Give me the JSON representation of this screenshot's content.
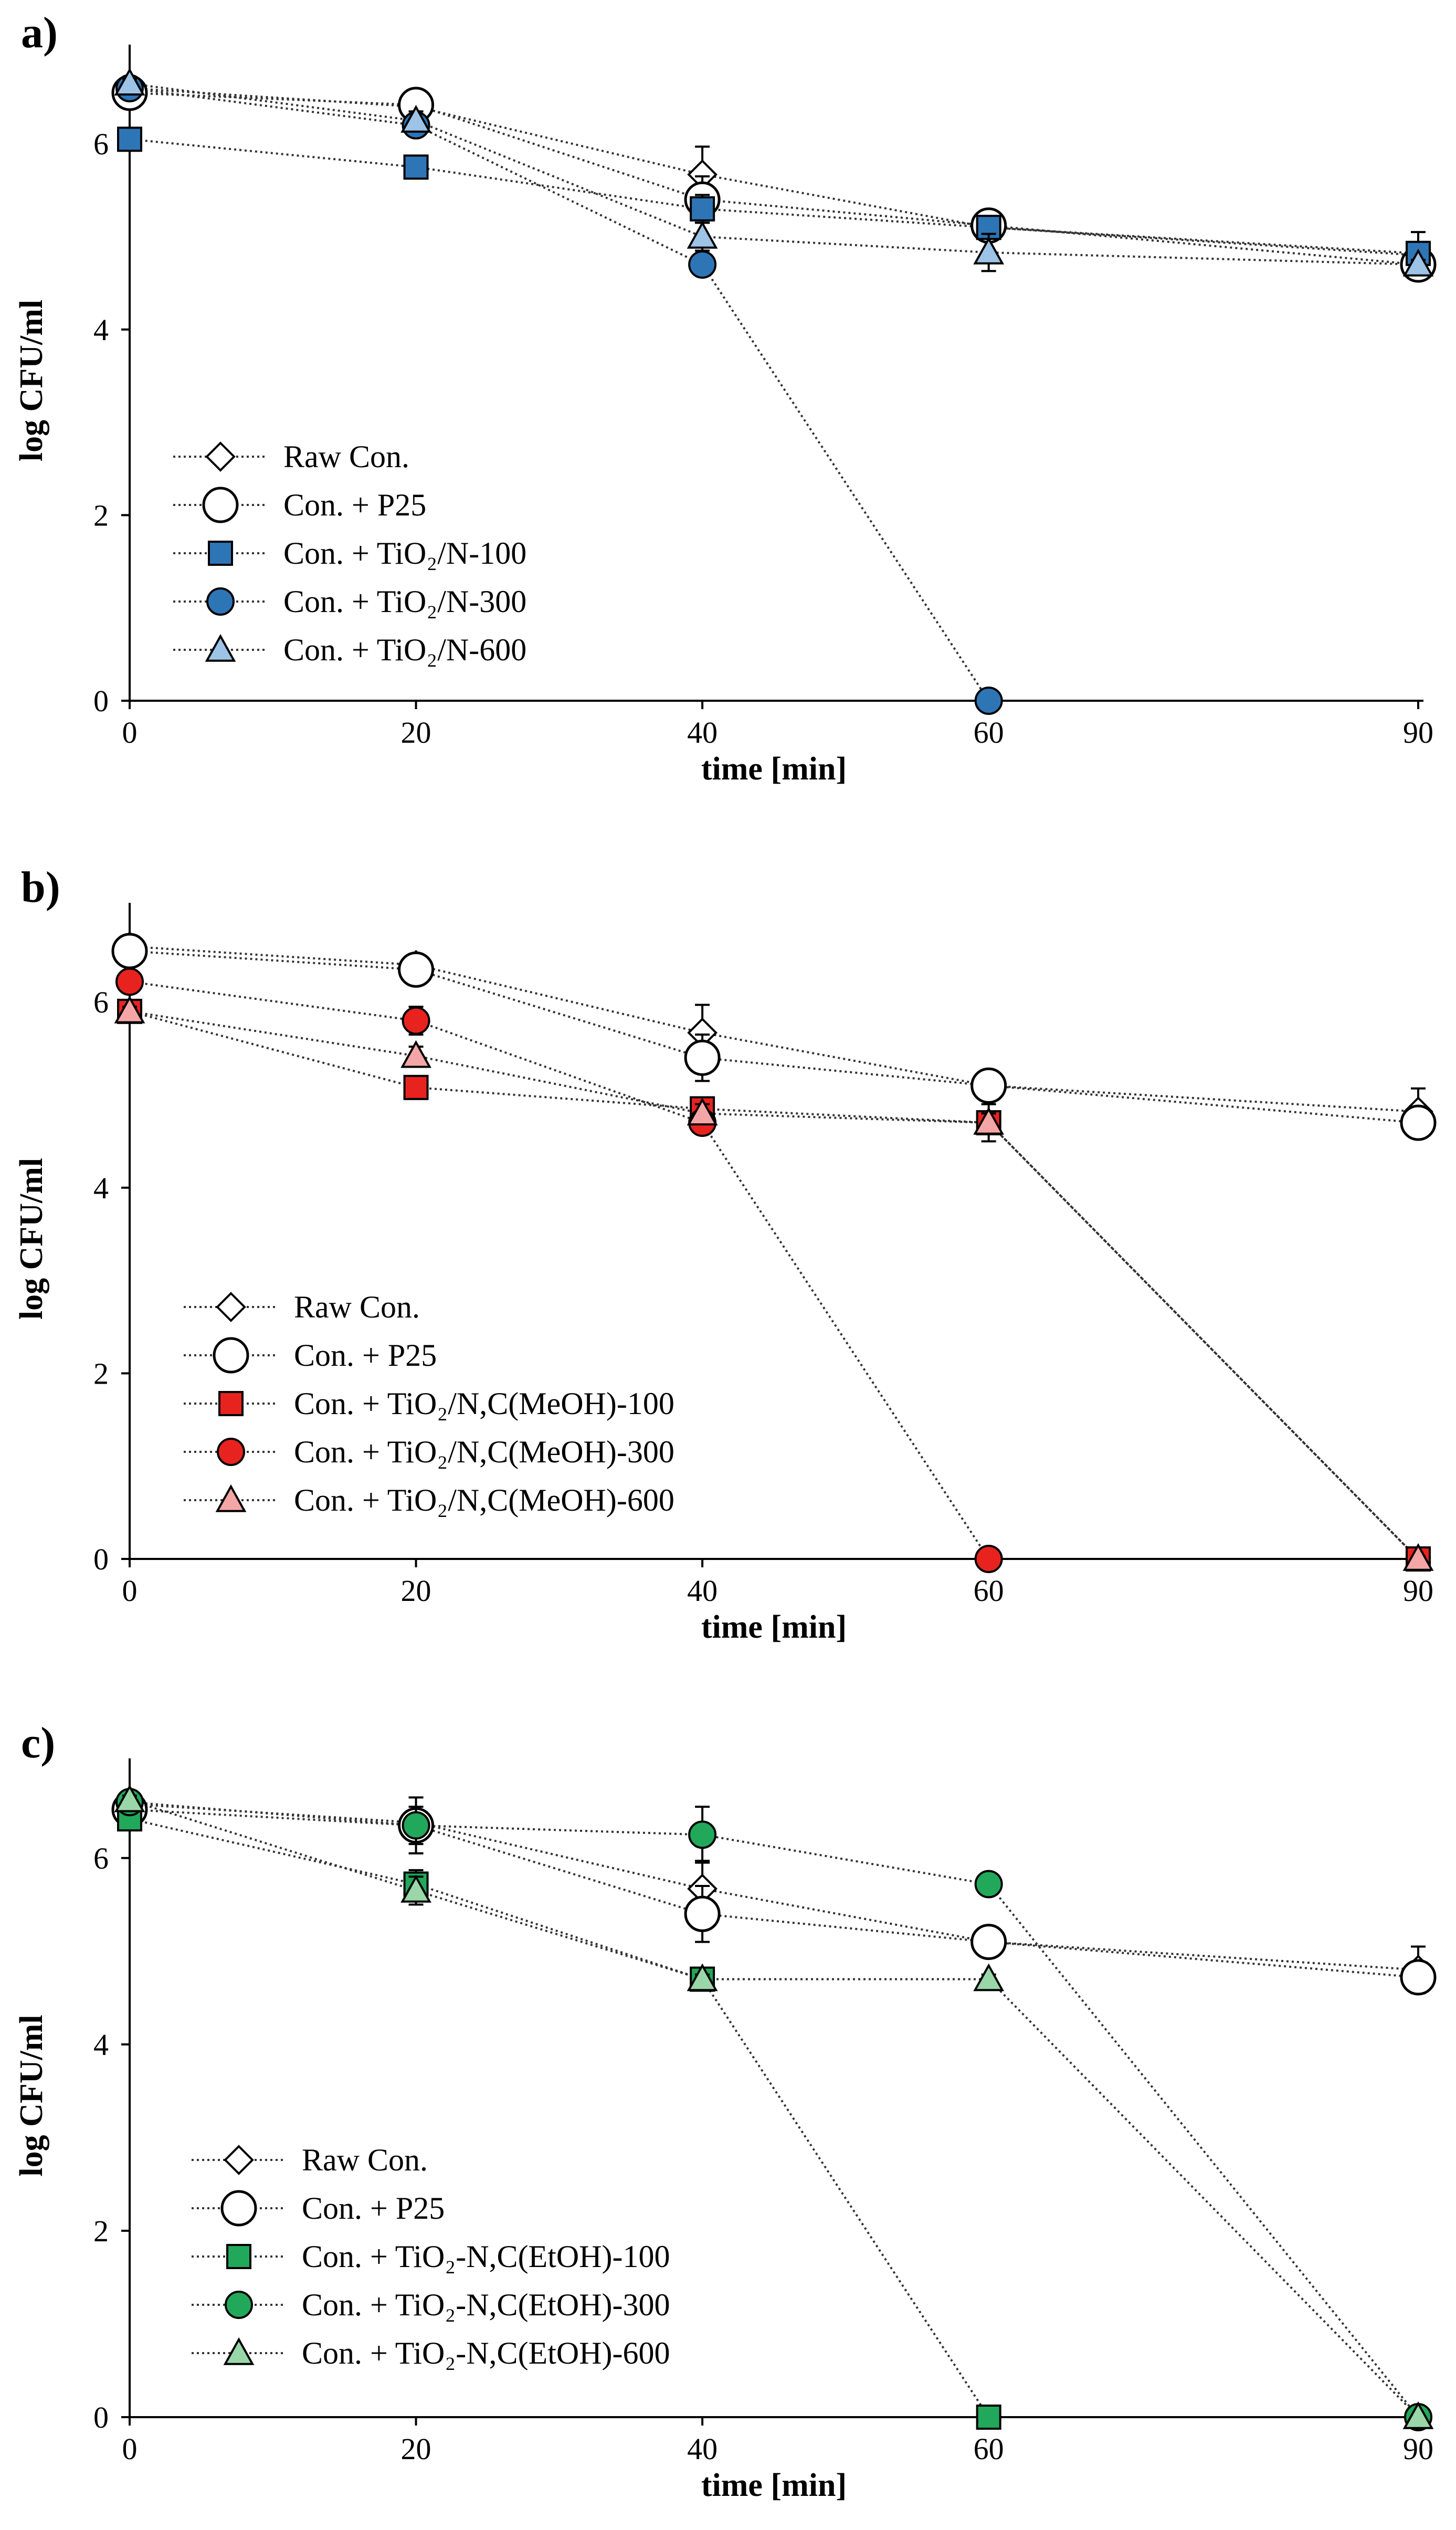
{
  "figure": {
    "series_colors": {
      "raw": "#ffffff",
      "p25": "#ffffff",
      "a": "#2e75b6",
      "a600": "#9dc3e6",
      "b": "#e8231f",
      "b600": "#f4a6a6",
      "c": "#22a85a",
      "c600": "#9ad7a8"
    }
  },
  "chart_data": [
    {
      "panel_label": "a)",
      "type": "line",
      "xlabel": "time [min]",
      "ylabel": "log CFU/ml",
      "categories": [
        "0",
        "20",
        "40",
        "60",
        "90"
      ],
      "x": [
        0,
        20,
        40,
        60,
        90
      ],
      "y_ticks": [
        "0",
        "2",
        "4",
        "6"
      ],
      "ylim": [
        0,
        6.9
      ],
      "legend_position": "bottom-left",
      "series": [
        {
          "name": "Raw Con.",
          "marker": "diamond",
          "fill": "#ffffff",
          "values": [
            6.6,
            6.4,
            5.67,
            5.1,
            4.8
          ],
          "errors": [
            0.05,
            0.1,
            0.3,
            0.1,
            0.25
          ]
        },
        {
          "name": "Con. + P25",
          "marker": "circle-hollow",
          "fill": "#ffffff",
          "values": [
            6.55,
            6.42,
            5.4,
            5.12,
            4.7
          ],
          "errors": [
            0.05,
            0.1,
            0.25,
            0.1,
            0.1
          ]
        },
        {
          "name": "Con. + TiO₂/N-100",
          "marker": "square",
          "fill": "#2e75b6",
          "values": [
            6.05,
            5.75,
            5.3,
            5.1,
            4.82
          ],
          "errors": [
            0.1,
            0.1,
            0.15,
            0.05,
            0.05
          ]
        },
        {
          "name": "Con. + TiO₂/N-300",
          "marker": "circle",
          "fill": "#2e75b6",
          "values": [
            6.6,
            6.2,
            4.7,
            0,
            null
          ],
          "errors": [
            0.05,
            0.1,
            0.05,
            0,
            null
          ]
        },
        {
          "name": "Con. + TiO₂/N-600",
          "marker": "triangle",
          "fill": "#9dc3e6",
          "values": [
            6.65,
            6.25,
            5.0,
            4.83,
            4.7
          ],
          "errors": [
            0.05,
            0.1,
            0.15,
            0.2,
            0.05
          ]
        }
      ]
    },
    {
      "panel_label": "b)",
      "type": "line",
      "xlabel": "time [min]",
      "ylabel": "log CFU/ml",
      "categories": [
        "0",
        "20",
        "40",
        "60",
        "90"
      ],
      "x": [
        0,
        20,
        40,
        60,
        90
      ],
      "y_ticks": [
        "0",
        "2",
        "4",
        "6"
      ],
      "ylim": [
        0,
        6.9
      ],
      "legend_position": "bottom-left",
      "series": [
        {
          "name": "Raw Con.",
          "marker": "diamond",
          "fill": "#ffffff",
          "values": [
            6.6,
            6.4,
            5.67,
            5.1,
            4.82
          ],
          "errors": [
            0.05,
            0.1,
            0.3,
            0.1,
            0.25
          ]
        },
        {
          "name": "Con. + P25",
          "marker": "circle-hollow",
          "fill": "#ffffff",
          "values": [
            6.55,
            6.35,
            5.4,
            5.1,
            4.7
          ],
          "errors": [
            0.05,
            0.1,
            0.25,
            0.1,
            0.1
          ]
        },
        {
          "name": "Con. + TiO₂/N,C(MeOH)-100",
          "marker": "square",
          "fill": "#e8231f",
          "values": [
            5.9,
            5.08,
            4.85,
            4.7,
            0
          ],
          "errors": [
            0.05,
            0.1,
            0.1,
            0.2,
            0
          ]
        },
        {
          "name": "Con. + TiO₂/N,C(MeOH)-300",
          "marker": "circle",
          "fill": "#e8231f",
          "values": [
            6.22,
            5.8,
            4.7,
            0,
            null
          ],
          "errors": [
            0.05,
            0.15,
            0.1,
            0,
            null
          ]
        },
        {
          "name": "Con. + TiO₂/N,C(MeOH)-600",
          "marker": "triangle",
          "fill": "#f4a6a6",
          "values": [
            5.9,
            5.42,
            4.8,
            4.7,
            0
          ],
          "errors": [
            0.05,
            0.1,
            0.1,
            0.1,
            0
          ]
        }
      ]
    },
    {
      "panel_label": "c)",
      "type": "line",
      "xlabel": "time [min]",
      "ylabel": "log CFU/ml",
      "categories": [
        "0",
        "20",
        "40",
        "60",
        "90"
      ],
      "x": [
        0,
        20,
        40,
        60,
        90
      ],
      "y_ticks": [
        "0",
        "2",
        "4",
        "6"
      ],
      "ylim": [
        0,
        6.9
      ],
      "legend_position": "bottom-left",
      "series": [
        {
          "name": "Raw Con.",
          "marker": "diamond",
          "fill": "#ffffff",
          "values": [
            6.58,
            6.38,
            5.67,
            5.1,
            4.8
          ],
          "errors": [
            0.05,
            0.1,
            0.3,
            0.1,
            0.25
          ]
        },
        {
          "name": "Con. + P25",
          "marker": "circle-hollow",
          "fill": "#ffffff",
          "values": [
            6.52,
            6.35,
            5.4,
            5.1,
            4.72
          ],
          "errors": [
            0.05,
            0.3,
            0.3,
            0.1,
            0.1
          ]
        },
        {
          "name": "Con. + TiO₂-N,C(EtOH)-100",
          "marker": "square",
          "fill": "#22a85a",
          "values": [
            6.42,
            5.72,
            4.7,
            0,
            null
          ],
          "errors": [
            0.05,
            0.15,
            0.05,
            0,
            null
          ]
        },
        {
          "name": "Con. + TiO₂-N,C(EtOH)-300",
          "marker": "circle",
          "fill": "#22a85a",
          "values": [
            6.6,
            6.35,
            6.25,
            5.72,
            0
          ],
          "errors": [
            0.05,
            0.2,
            0.3,
            0.05,
            0
          ]
        },
        {
          "name": "Con. + TiO₂-N,C(EtOH)-600",
          "marker": "triangle",
          "fill": "#9ad7a8",
          "values": [
            6.62,
            5.65,
            4.7,
            4.7,
            0
          ],
          "errors": [
            0.05,
            0.15,
            0.05,
            0.05,
            0
          ]
        }
      ]
    }
  ]
}
